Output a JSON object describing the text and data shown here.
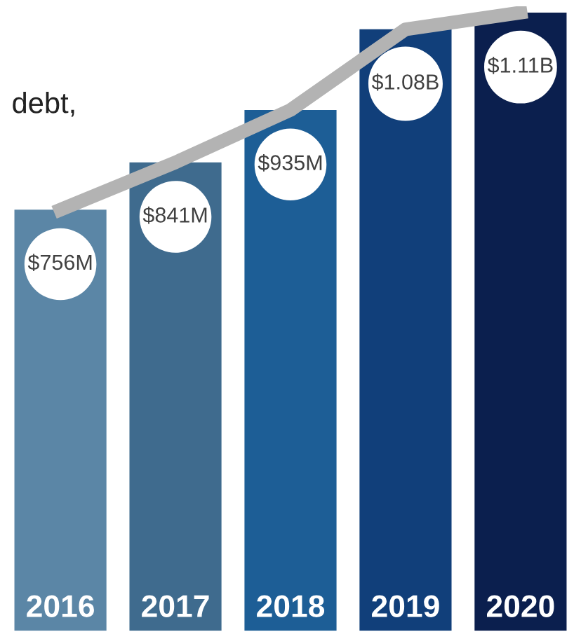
{
  "chart_data": {
    "type": "bar",
    "title": "debt,",
    "categories": [
      "2016",
      "2017",
      "2018",
      "2019",
      "2020"
    ],
    "series": [
      {
        "colors": [
          "#5b86a6",
          "#3f6b8e",
          "#1d5e96",
          "#113f7a",
          "#0b1f4e"
        ],
        "values": [
          756000000,
          841000000,
          935000000,
          1080000000,
          1110000000
        ],
        "value_labels": [
          "$756M",
          "$841M",
          "$935M",
          "$1.08B",
          "$1.11B"
        ]
      },
      {
        "type": "line",
        "color": "#b3b3b3",
        "values": [
          756000000,
          841000000,
          935000000,
          1080000000,
          1110000000
        ]
      }
    ]
  }
}
